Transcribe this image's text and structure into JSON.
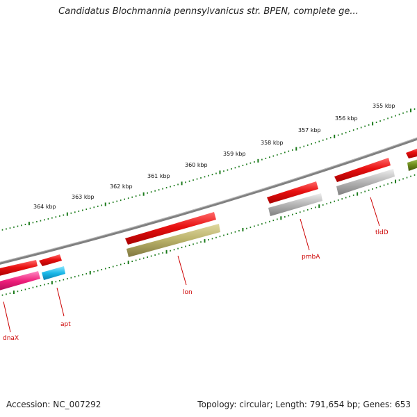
{
  "title": "Candidatus Blochmannia pennsylvanicus str. BPEN, complete ge...",
  "footer": {
    "accession": "Accession: NC_007292",
    "summary": "Topology: circular; Length: 791,654 bp; Genes: 653"
  },
  "scale_labels": [
    "364 kbp",
    "363 kbp",
    "362 kbp",
    "361 kbp",
    "360 kbp",
    "359 kbp",
    "358 kbp",
    "357 kbp",
    "356 kbp",
    "355 kbp"
  ],
  "genes": [
    {
      "name": "dnaX",
      "color": "#ee1d7a"
    },
    {
      "name": "apt",
      "color": "#1ab8e8"
    },
    {
      "name": "lon",
      "color": "#b8b068"
    },
    {
      "name": "pmbA",
      "color": "#b0b0b0"
    },
    {
      "name": "tldD",
      "color": "#b8b8b8"
    },
    {
      "name": "",
      "color": "#6e8c1c"
    }
  ],
  "colors": {
    "strand_arrow": "#e01010",
    "backbone": "#888888",
    "tick": "#1a7a1a",
    "label": "#cc0000"
  }
}
